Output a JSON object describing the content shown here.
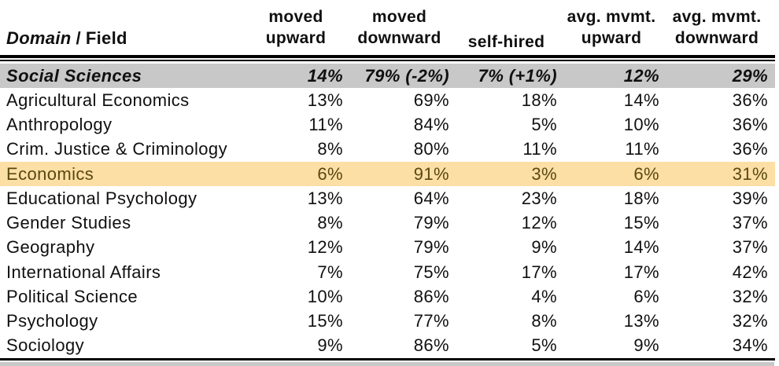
{
  "colors": {
    "page_bg": "#ffffff",
    "text": "#101010",
    "rule": "#000000",
    "domain_row_bg": "#c8c8c8",
    "highlight_row_bg": "#fcdfa4",
    "highlight_row_text": "#5a4712"
  },
  "chart_data": {
    "type": "table",
    "title": "",
    "header": {
      "domain_label": "Domain",
      "separator": "/",
      "field_label": "Field",
      "columns": [
        {
          "id": "moved-upward",
          "label": "moved\nupward"
        },
        {
          "id": "moved-downward",
          "label": "moved\ndownward"
        },
        {
          "id": "self-hired",
          "label": "self-hired"
        },
        {
          "id": "avg-mvmt-upward",
          "label": "avg. mvmt.\nupward"
        },
        {
          "id": "avg-mvmt-downward",
          "label": "avg. mvmt.\ndownward"
        }
      ]
    },
    "rows": [
      {
        "field": "Social Sciences",
        "variant": "domain",
        "values": [
          "14%",
          "79% (-2%)",
          "7% (+1%)",
          "12%",
          "29%"
        ]
      },
      {
        "field": "Agricultural Economics",
        "variant": "normal",
        "values": [
          "13%",
          "69%",
          "18%",
          "14%",
          "36%"
        ]
      },
      {
        "field": "Anthropology",
        "variant": "normal",
        "values": [
          "11%",
          "84%",
          "5%",
          "10%",
          "36%"
        ]
      },
      {
        "field": "Crim. Justice & Criminology",
        "variant": "normal",
        "values": [
          "8%",
          "80%",
          "11%",
          "11%",
          "36%"
        ]
      },
      {
        "field": "Economics",
        "variant": "highlight",
        "values": [
          "6%",
          "91%",
          "3%",
          "6%",
          "31%"
        ]
      },
      {
        "field": "Educational Psychology",
        "variant": "normal",
        "values": [
          "13%",
          "64%",
          "23%",
          "18%",
          "39%"
        ]
      },
      {
        "field": "Gender Studies",
        "variant": "normal",
        "values": [
          "8%",
          "79%",
          "12%",
          "15%",
          "37%"
        ]
      },
      {
        "field": "Geography",
        "variant": "normal",
        "values": [
          "12%",
          "79%",
          "9%",
          "14%",
          "37%"
        ]
      },
      {
        "field": "International Affairs",
        "variant": "normal",
        "values": [
          "7%",
          "75%",
          "17%",
          "17%",
          "42%"
        ]
      },
      {
        "field": "Political Science",
        "variant": "normal",
        "values": [
          "10%",
          "86%",
          "4%",
          "6%",
          "32%"
        ]
      },
      {
        "field": "Psychology",
        "variant": "normal",
        "values": [
          "15%",
          "77%",
          "8%",
          "13%",
          "32%"
        ]
      },
      {
        "field": "Sociology",
        "variant": "normal",
        "values": [
          "9%",
          "86%",
          "5%",
          "9%",
          "34%"
        ]
      }
    ]
  }
}
